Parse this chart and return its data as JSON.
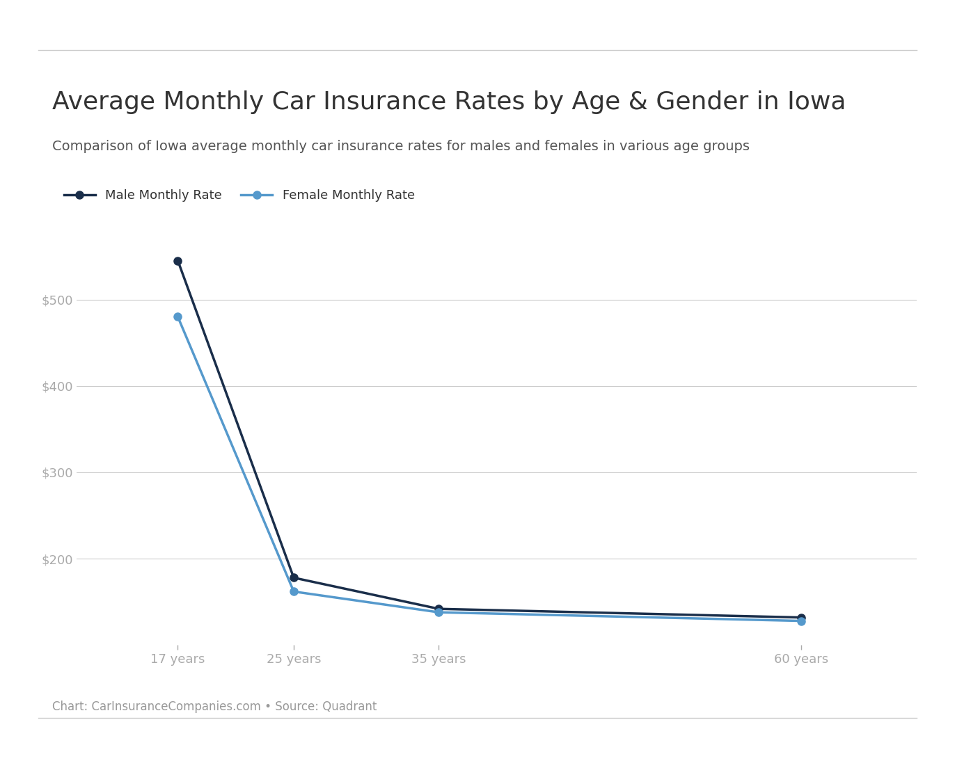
{
  "title": "Average Monthly Car Insurance Rates by Age & Gender in Iowa",
  "subtitle": "Comparison of Iowa average monthly car insurance rates for males and females in various age groups",
  "source_note": "Chart: CarInsuranceCompanies.com • Source: Quadrant",
  "legend_male": "Male Monthly Rate",
  "legend_female": "Female Monthly Rate",
  "ages": [
    17,
    25,
    35,
    60
  ],
  "age_labels": [
    "17 years",
    "25 years",
    "35 years",
    "60 years"
  ],
  "male_rates": [
    545,
    178,
    142,
    132
  ],
  "female_rates": [
    480,
    162,
    138,
    128
  ],
  "male_color": "#1a2e4a",
  "female_color": "#5599cc",
  "yticks": [
    200,
    300,
    400,
    500
  ],
  "ylim": [
    100,
    580
  ],
  "title_fontsize": 26,
  "subtitle_fontsize": 14,
  "legend_fontsize": 13,
  "tick_fontsize": 13,
  "source_fontsize": 12,
  "line_width": 2.5,
  "marker_size": 8,
  "background_color": "#ffffff",
  "grid_color": "#cccccc",
  "tick_color": "#aaaaaa",
  "text_color": "#333333",
  "subtitle_color": "#555555",
  "source_color": "#999999"
}
